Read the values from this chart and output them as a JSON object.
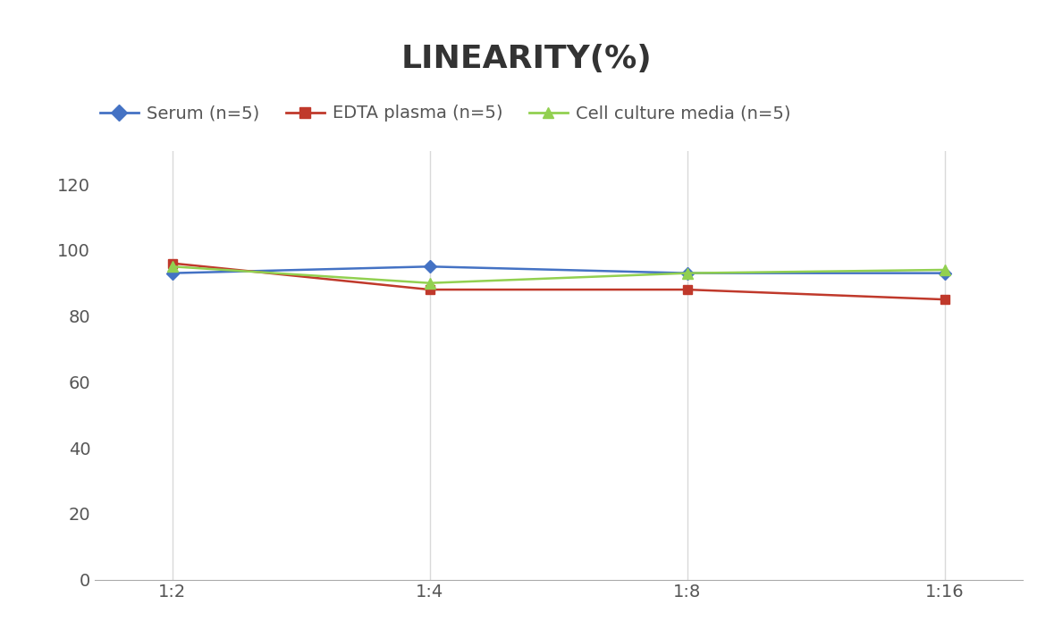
{
  "title": "LINEARITY(%)",
  "x_labels": [
    "1:2",
    "1:4",
    "1:8",
    "1:16"
  ],
  "x_positions": [
    0,
    1,
    2,
    3
  ],
  "series": [
    {
      "label": "Serum (n=5)",
      "values": [
        93,
        95,
        93,
        93
      ],
      "color": "#4472C4",
      "marker": "D",
      "marker_size": 7,
      "linewidth": 1.8
    },
    {
      "label": "EDTA plasma (n=5)",
      "values": [
        96,
        88,
        88,
        85
      ],
      "color": "#C0392B",
      "marker": "s",
      "marker_size": 7,
      "linewidth": 1.8
    },
    {
      "label": "Cell culture media (n=5)",
      "values": [
        95,
        90,
        93,
        94
      ],
      "color": "#92D050",
      "marker": "^",
      "marker_size": 8,
      "linewidth": 1.8
    }
  ],
  "ylim": [
    0,
    130
  ],
  "yticks": [
    0,
    20,
    40,
    60,
    80,
    100,
    120
  ],
  "background_color": "#FFFFFF",
  "grid_color": "#D9D9D9",
  "title_fontsize": 26,
  "tick_fontsize": 14,
  "legend_fontsize": 14
}
